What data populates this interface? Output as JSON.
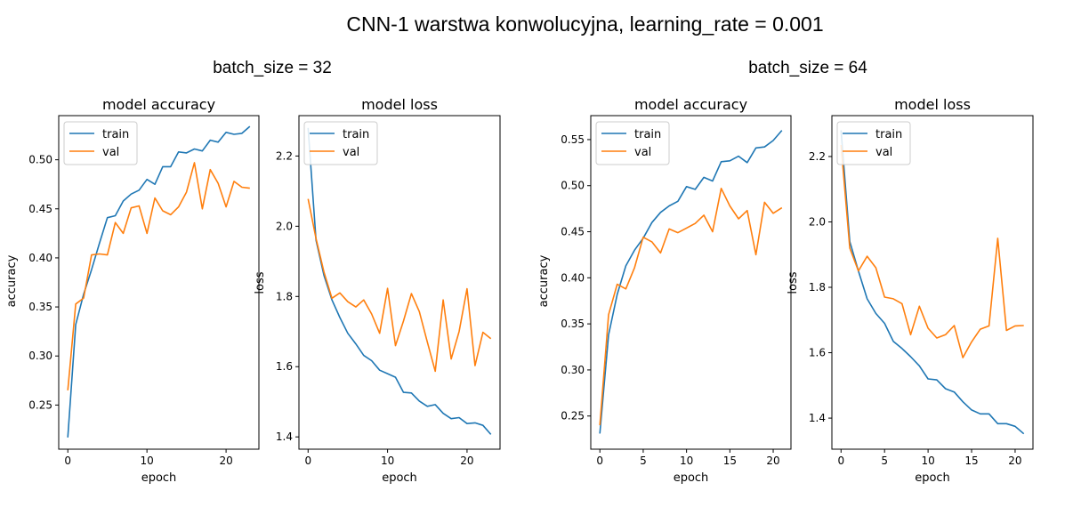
{
  "figure": {
    "title": "CNN-1 warstwa konwolucyjna, learning_rate = 0.001",
    "groups": [
      {
        "title": "batch_size = 32"
      },
      {
        "title": "batch_size = 64"
      }
    ]
  },
  "colors": {
    "train": "#1f77b4",
    "val": "#ff7f0e"
  },
  "chart_data": [
    {
      "type": "line",
      "group": "batch_size = 32",
      "title": "model accuracy",
      "xlabel": "epoch",
      "ylabel": "accuracy",
      "xlim": [
        -1.15,
        24.15
      ],
      "ylim": [
        0.205,
        0.545
      ],
      "xticks": [
        0,
        10,
        20
      ],
      "yticks": [
        0.25,
        0.3,
        0.35,
        0.4,
        0.45,
        0.5
      ],
      "ytick_labels": [
        "0.25",
        "0.30",
        "0.35",
        "0.40",
        "0.45",
        "0.50"
      ],
      "legend": {
        "position": "upper-left",
        "entries": [
          "train",
          "val"
        ]
      },
      "series": [
        {
          "name": "train",
          "values": [
            0.217,
            0.332,
            0.363,
            0.388,
            0.415,
            0.441,
            0.443,
            0.458,
            0.465,
            0.469,
            0.48,
            0.475,
            0.493,
            0.493,
            0.508,
            0.507,
            0.511,
            0.509,
            0.52,
            0.518,
            0.528,
            0.526,
            0.527,
            0.534
          ]
        },
        {
          "name": "val",
          "values": [
            0.265,
            0.353,
            0.359,
            0.403,
            0.404,
            0.403,
            0.436,
            0.425,
            0.451,
            0.453,
            0.425,
            0.461,
            0.448,
            0.444,
            0.452,
            0.467,
            0.497,
            0.45,
            0.49,
            0.476,
            0.452,
            0.478,
            0.472,
            0.471
          ]
        }
      ]
    },
    {
      "type": "line",
      "group": "batch_size = 32",
      "title": "model loss",
      "xlabel": "epoch",
      "ylabel": "loss",
      "xlim": [
        -1.15,
        24.15
      ],
      "ylim": [
        1.365,
        2.315
      ],
      "xticks": [
        0,
        10,
        20
      ],
      "yticks": [
        1.4,
        1.6,
        1.8,
        2.0,
        2.2
      ],
      "ytick_labels": [
        "1.4",
        "1.6",
        "1.8",
        "2.0",
        "2.2"
      ],
      "legend": {
        "position": "upper-left",
        "entries": [
          "train",
          "val"
        ]
      },
      "series": [
        {
          "name": "train",
          "values": [
            2.28,
            1.96,
            1.86,
            1.79,
            1.74,
            1.695,
            1.665,
            1.632,
            1.617,
            1.59,
            1.58,
            1.57,
            1.527,
            1.525,
            1.502,
            1.487,
            1.492,
            1.467,
            1.452,
            1.455,
            1.438,
            1.44,
            1.433,
            1.407
          ]
        },
        {
          "name": "val",
          "values": [
            2.078,
            1.965,
            1.87,
            1.795,
            1.81,
            1.785,
            1.77,
            1.79,
            1.75,
            1.695,
            1.823,
            1.66,
            1.73,
            1.808,
            1.757,
            1.67,
            1.587,
            1.79,
            1.622,
            1.7,
            1.822,
            1.603,
            1.698,
            1.68
          ]
        }
      ]
    },
    {
      "type": "line",
      "group": "batch_size = 64",
      "title": "model accuracy",
      "xlabel": "epoch",
      "ylabel": "accuracy",
      "xlim": [
        -1.05,
        22.05
      ],
      "ylim": [
        0.214,
        0.576
      ],
      "xticks": [
        0,
        5,
        10,
        15,
        20
      ],
      "yticks": [
        0.25,
        0.3,
        0.35,
        0.4,
        0.45,
        0.5,
        0.55
      ],
      "ytick_labels": [
        "0.25",
        "0.30",
        "0.35",
        "0.40",
        "0.45",
        "0.50",
        "0.55"
      ],
      "legend": {
        "position": "upper-left",
        "entries": [
          "train",
          "val"
        ]
      },
      "series": [
        {
          "name": "train",
          "values": [
            0.231,
            0.338,
            0.382,
            0.413,
            0.43,
            0.443,
            0.46,
            0.471,
            0.478,
            0.483,
            0.499,
            0.496,
            0.509,
            0.505,
            0.526,
            0.527,
            0.532,
            0.525,
            0.541,
            0.542,
            0.549,
            0.56
          ]
        },
        {
          "name": "val",
          "values": [
            0.24,
            0.36,
            0.393,
            0.388,
            0.411,
            0.444,
            0.439,
            0.427,
            0.453,
            0.449,
            0.454,
            0.459,
            0.468,
            0.45,
            0.497,
            0.478,
            0.464,
            0.473,
            0.425,
            0.482,
            0.47,
            0.476
          ]
        }
      ]
    },
    {
      "type": "line",
      "group": "batch_size = 64",
      "title": "model loss",
      "xlabel": "epoch",
      "ylabel": "loss",
      "xlim": [
        -1.05,
        22.05
      ],
      "ylim": [
        1.305,
        2.325
      ],
      "xticks": [
        0,
        5,
        10,
        15,
        20
      ],
      "yticks": [
        1.4,
        1.6,
        1.8,
        2.0,
        2.2
      ],
      "ytick_labels": [
        "1.4",
        "1.6",
        "1.8",
        "2.0",
        "2.2"
      ],
      "legend": {
        "position": "upper-left",
        "entries": [
          "train",
          "val"
        ]
      },
      "series": [
        {
          "name": "train",
          "values": [
            2.28,
            1.94,
            1.85,
            1.765,
            1.72,
            1.69,
            1.635,
            1.613,
            1.588,
            1.56,
            1.52,
            1.517,
            1.49,
            1.48,
            1.45,
            1.425,
            1.413,
            1.413,
            1.383,
            1.383,
            1.375,
            1.352
          ]
        },
        {
          "name": "val",
          "values": [
            2.235,
            1.92,
            1.85,
            1.895,
            1.86,
            1.77,
            1.765,
            1.75,
            1.655,
            1.742,
            1.675,
            1.645,
            1.655,
            1.683,
            1.585,
            1.633,
            1.672,
            1.682,
            1.95,
            1.668,
            1.682,
            1.683
          ]
        }
      ]
    }
  ]
}
